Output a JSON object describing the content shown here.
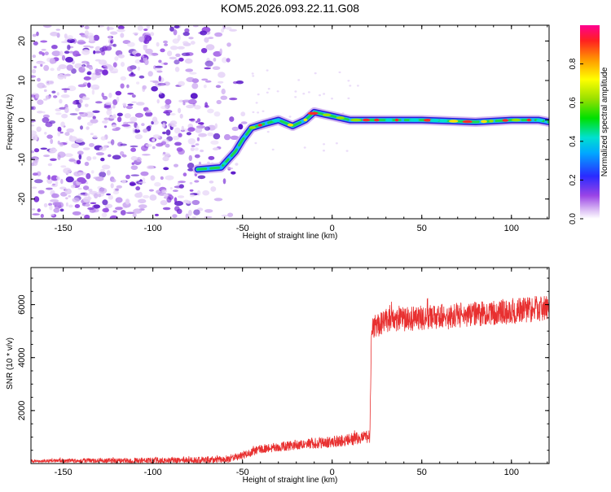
{
  "title": "KOM5.2026.093.22.11.G08",
  "colors": {
    "snr_line": "#e83030",
    "spectrogram_noise": "#8a3bd6",
    "frame": "#000000"
  },
  "chart_data": [
    {
      "type": "heatmap",
      "name": "spectrogram",
      "title": "",
      "xlabel": "Height of straight line (km)",
      "ylabel": "Frequency (Hz)",
      "xlim": [
        -168,
        121
      ],
      "ylim": [
        -25,
        24
      ],
      "x_ticks": [
        -150,
        -100,
        -50,
        0,
        50,
        100
      ],
      "y_ticks": [
        -20,
        -10,
        0,
        10,
        20
      ],
      "noise_region_x": [
        -168,
        -48
      ],
      "ridge_points": [
        {
          "x": -75,
          "y": -12.5
        },
        {
          "x": -62,
          "y": -12
        },
        {
          "x": -58,
          "y": -10
        },
        {
          "x": -54,
          "y": -8
        },
        {
          "x": -50,
          "y": -5
        },
        {
          "x": -45,
          "y": -2
        },
        {
          "x": -38,
          "y": -1
        },
        {
          "x": -30,
          "y": 0
        },
        {
          "x": -22,
          "y": -1.5
        },
        {
          "x": -15,
          "y": 0
        },
        {
          "x": -10,
          "y": 2
        },
        {
          "x": -5,
          "y": 1.5
        },
        {
          "x": 0,
          "y": 1
        },
        {
          "x": 10,
          "y": 0
        },
        {
          "x": 30,
          "y": 0
        },
        {
          "x": 50,
          "y": 0
        },
        {
          "x": 80,
          "y": -0.5
        },
        {
          "x": 100,
          "y": 0
        },
        {
          "x": 115,
          "y": 0
        },
        {
          "x": 121,
          "y": -0.5
        }
      ],
      "colorbar": {
        "label": "Normalized spectral amplitude",
        "range": [
          0,
          1
        ],
        "ticks": [
          0.0,
          0.2,
          0.4,
          0.6,
          0.8
        ],
        "tick_labels": [
          "0.0",
          "0.2",
          "0.4",
          "0.6",
          "0.8"
        ]
      }
    },
    {
      "type": "line",
      "name": "snr",
      "title": "",
      "xlabel": "Height of straight line (km)",
      "ylabel": "SNR (10 * v/v)",
      "xlim": [
        -168,
        121
      ],
      "ylim": [
        0,
        7400
      ],
      "x_ticks": [
        -150,
        -100,
        -50,
        0,
        50,
        100
      ],
      "y_ticks": [
        2000,
        4000,
        6000
      ],
      "series": [
        {
          "name": "SNR",
          "anchors": [
            {
              "x": -168,
              "y": 100
            },
            {
              "x": -80,
              "y": 120
            },
            {
              "x": -60,
              "y": 150
            },
            {
              "x": -50,
              "y": 300
            },
            {
              "x": -40,
              "y": 550
            },
            {
              "x": -20,
              "y": 700
            },
            {
              "x": 0,
              "y": 820
            },
            {
              "x": 15,
              "y": 950
            },
            {
              "x": 21,
              "y": 1000
            },
            {
              "x": 22,
              "y": 5100
            },
            {
              "x": 30,
              "y": 5400
            },
            {
              "x": 50,
              "y": 5500
            },
            {
              "x": 80,
              "y": 5650
            },
            {
              "x": 100,
              "y": 5750
            },
            {
              "x": 121,
              "y": 5900
            }
          ],
          "noise_amplitude": [
            {
              "x": -168,
              "amp": 60
            },
            {
              "x": -50,
              "amp": 150
            },
            {
              "x": 21,
              "amp": 250
            },
            {
              "x": 22,
              "amp": 450
            },
            {
              "x": 121,
              "amp": 500
            }
          ]
        }
      ]
    }
  ]
}
